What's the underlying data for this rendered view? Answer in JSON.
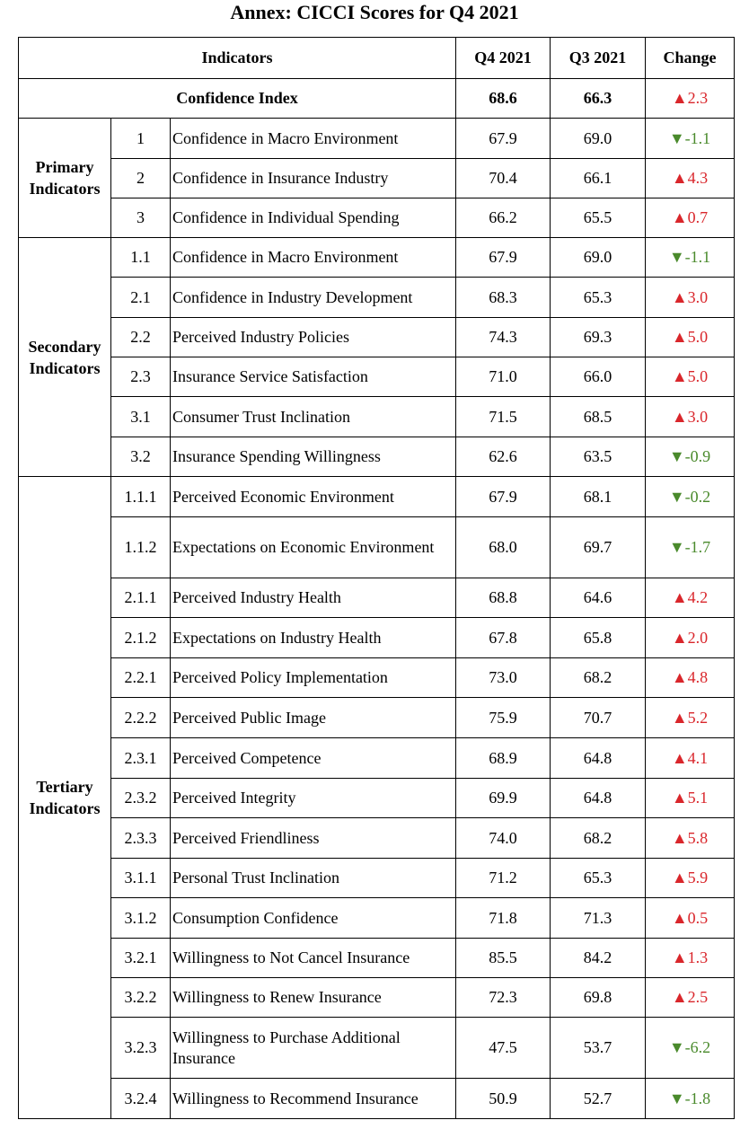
{
  "title": "Annex: CICCI Scores for Q4 2021",
  "colors": {
    "up": "#d9262b",
    "down": "#4a8a2c"
  },
  "headers": {
    "indicators": "Indicators",
    "q4": "Q4 2021",
    "q3": "Q3 2021",
    "change": "Change"
  },
  "confidence_index": {
    "label": "Confidence Index",
    "q4": "68.6",
    "q3": "66.3",
    "arrow": "▲",
    "change": "2.3",
    "direction": "up"
  },
  "groups": {
    "primary": "Primary Indicators",
    "secondary": "Secondary Indicators",
    "tertiary": "Tertiary Indicators"
  },
  "rows": [
    {
      "code": "1",
      "name": "Confidence in Macro Environment",
      "q4": "67.9",
      "q3": "69.0",
      "arrow": "▼",
      "change": "-1.1",
      "direction": "down"
    },
    {
      "code": "2",
      "name": "Confidence in Insurance Industry",
      "q4": "70.4",
      "q3": "66.1",
      "arrow": "▲",
      "change": "4.3",
      "direction": "up"
    },
    {
      "code": "3",
      "name": "Confidence in Individual Spending",
      "q4": "66.2",
      "q3": "65.5",
      "arrow": "▲",
      "change": "0.7",
      "direction": "up"
    },
    {
      "code": "1.1",
      "name": "Confidence in Macro Environment",
      "q4": "67.9",
      "q3": "69.0",
      "arrow": "▼",
      "change": "-1.1",
      "direction": "down"
    },
    {
      "code": "2.1",
      "name": "Confidence in Industry Development",
      "q4": "68.3",
      "q3": "65.3",
      "arrow": "▲",
      "change": "3.0",
      "direction": "up"
    },
    {
      "code": "2.2",
      "name": "Perceived Industry Policies",
      "q4": "74.3",
      "q3": "69.3",
      "arrow": "▲",
      "change": "5.0",
      "direction": "up"
    },
    {
      "code": "2.3",
      "name": "Insurance Service Satisfaction",
      "q4": "71.0",
      "q3": "66.0",
      "arrow": "▲",
      "change": "5.0",
      "direction": "up"
    },
    {
      "code": "3.1",
      "name": "Consumer Trust Inclination",
      "q4": "71.5",
      "q3": "68.5",
      "arrow": "▲",
      "change": "3.0",
      "direction": "up"
    },
    {
      "code": "3.2",
      "name": "Insurance Spending Willingness",
      "q4": "62.6",
      "q3": "63.5",
      "arrow": "▼",
      "change": "-0.9",
      "direction": "down"
    },
    {
      "code": "1.1.1",
      "name": "Perceived Economic Environment",
      "q4": "67.9",
      "q3": "68.1",
      "arrow": "▼",
      "change": "-0.2",
      "direction": "down"
    },
    {
      "code": "1.1.2",
      "name": "Expectations on Economic Environment",
      "q4": "68.0",
      "q3": "69.7",
      "arrow": "▼",
      "change": "-1.7",
      "direction": "down"
    },
    {
      "code": "2.1.1",
      "name": "Perceived Industry Health",
      "q4": "68.8",
      "q3": "64.6",
      "arrow": "▲",
      "change": "4.2",
      "direction": "up"
    },
    {
      "code": "2.1.2",
      "name": "Expectations on Industry Health",
      "q4": "67.8",
      "q3": "65.8",
      "arrow": "▲",
      "change": "2.0",
      "direction": "up"
    },
    {
      "code": "2.2.1",
      "name": "Perceived Policy Implementation",
      "q4": "73.0",
      "q3": "68.2",
      "arrow": "▲",
      "change": "4.8",
      "direction": "up"
    },
    {
      "code": "2.2.2",
      "name": "Perceived Public Image",
      "q4": "75.9",
      "q3": "70.7",
      "arrow": "▲",
      "change": "5.2",
      "direction": "up"
    },
    {
      "code": "2.3.1",
      "name": "Perceived Competence",
      "q4": "68.9",
      "q3": "64.8",
      "arrow": "▲",
      "change": "4.1",
      "direction": "up"
    },
    {
      "code": "2.3.2",
      "name": "Perceived Integrity",
      "q4": "69.9",
      "q3": "64.8",
      "arrow": "▲",
      "change": "5.1",
      "direction": "up"
    },
    {
      "code": "2.3.3",
      "name": "Perceived Friendliness",
      "q4": "74.0",
      "q3": "68.2",
      "arrow": "▲",
      "change": "5.8",
      "direction": "up"
    },
    {
      "code": "3.1.1",
      "name": "Personal Trust Inclination",
      "q4": "71.2",
      "q3": "65.3",
      "arrow": "▲",
      "change": "5.9",
      "direction": "up"
    },
    {
      "code": "3.1.2",
      "name": "Consumption Confidence",
      "q4": "71.8",
      "q3": "71.3",
      "arrow": "▲",
      "change": "0.5",
      "direction": "up"
    },
    {
      "code": "3.2.1",
      "name": "Willingness to Not Cancel Insurance",
      "q4": "85.5",
      "q3": "84.2",
      "arrow": "▲",
      "change": "1.3",
      "direction": "up"
    },
    {
      "code": "3.2.2",
      "name": "Willingness to Renew Insurance",
      "q4": "72.3",
      "q3": "69.8",
      "arrow": "▲",
      "change": "2.5",
      "direction": "up"
    },
    {
      "code": "3.2.3",
      "name": "Willingness to Purchase Additional Insurance",
      "q4": "47.5",
      "q3": "53.7",
      "arrow": "▼",
      "change": "-6.2",
      "direction": "down"
    },
    {
      "code": "3.2.4",
      "name": "Willingness to Recommend Insurance",
      "q4": "50.9",
      "q3": "52.7",
      "arrow": "▼",
      "change": "-1.8",
      "direction": "down"
    }
  ]
}
